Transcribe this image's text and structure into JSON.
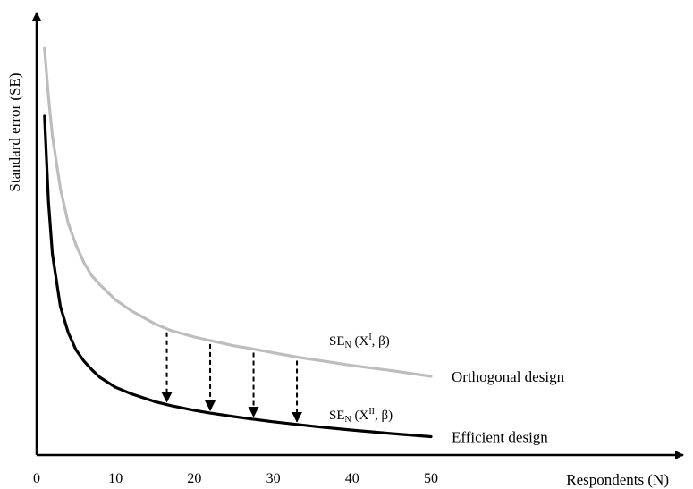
{
  "chart_data": {
    "type": "line",
    "xlabel": "Respondents (N)",
    "ylabel": "Standard error (SE)",
    "x_ticks": [
      0,
      10,
      20,
      30,
      40,
      50
    ],
    "xlim": [
      0,
      50
    ],
    "grid": false,
    "series": [
      {
        "name": "Orthogonal design",
        "curve_label": {
          "prefix": "SE",
          "sub": "N",
          "mid": " (X",
          "sup": "I",
          "suffix": ", β)"
        },
        "color": "#bdbdbd",
        "x": [
          1,
          1.5,
          2,
          3,
          4,
          5,
          6,
          7,
          8,
          10,
          12,
          15,
          17,
          20,
          22,
          25,
          27,
          30,
          33,
          36,
          40,
          45,
          50
        ],
        "values": [
          0.93,
          0.82,
          0.73,
          0.61,
          0.53,
          0.48,
          0.44,
          0.41,
          0.39,
          0.355,
          0.33,
          0.3,
          0.285,
          0.27,
          0.262,
          0.25,
          0.244,
          0.234,
          0.224,
          0.216,
          0.205,
          0.193,
          0.18
        ]
      },
      {
        "name": "Efficient design",
        "curve_label": {
          "prefix": "SE",
          "sub": "N",
          "mid": " (X",
          "sup": "II",
          "suffix": ", β)"
        },
        "color": "#000000",
        "x": [
          1,
          1.5,
          2,
          3,
          4,
          5,
          6,
          7,
          8,
          10,
          12,
          15,
          17,
          20,
          22,
          25,
          27,
          30,
          33,
          36,
          40,
          45,
          50
        ],
        "values": [
          0.775,
          0.58,
          0.46,
          0.34,
          0.28,
          0.24,
          0.215,
          0.195,
          0.178,
          0.155,
          0.14,
          0.122,
          0.113,
          0.102,
          0.096,
          0.088,
          0.083,
          0.076,
          0.07,
          0.064,
          0.057,
          0.049,
          0.042
        ]
      }
    ],
    "arrows_x": [
      16.5,
      22,
      27.5,
      33
    ]
  }
}
